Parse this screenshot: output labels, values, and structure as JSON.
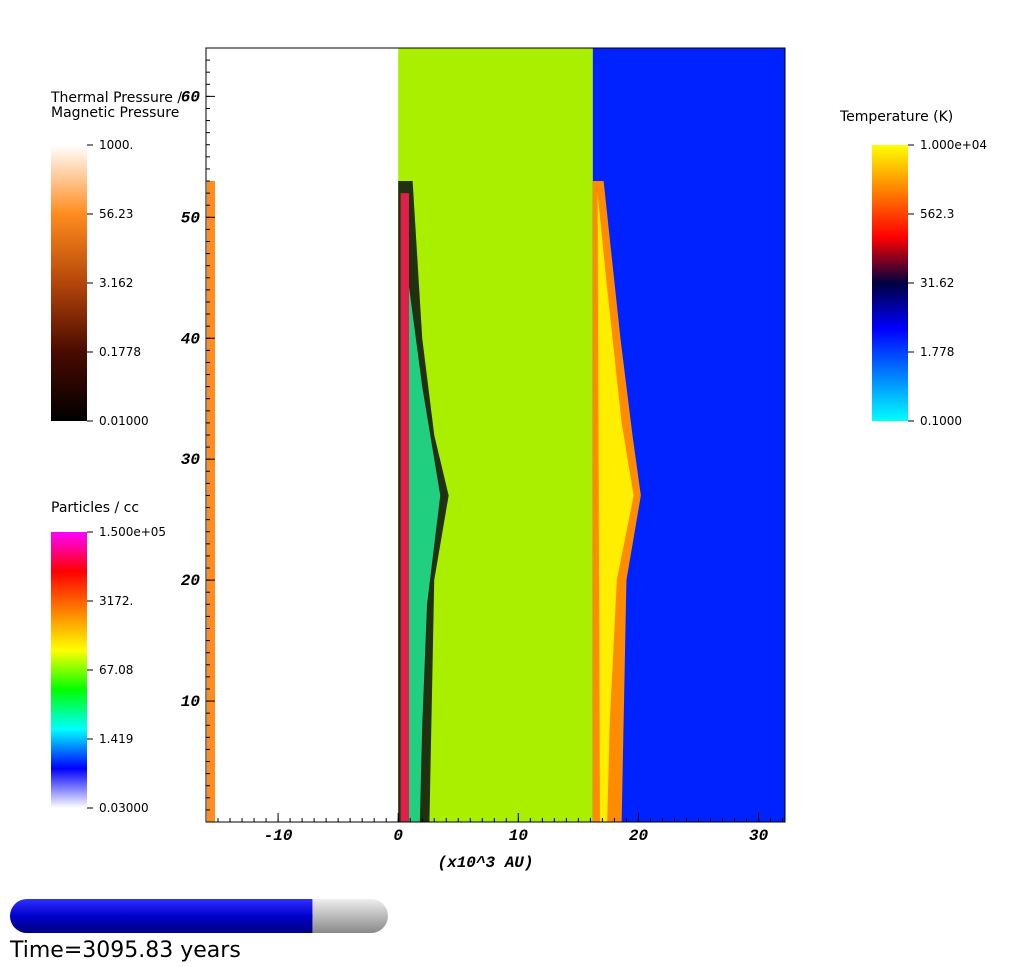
{
  "plot": {
    "xlabel": "(x10^3 AU)",
    "xlim": [
      -16,
      32.2
    ],
    "ylim": [
      0,
      64
    ],
    "xticks": [
      -10,
      0,
      10,
      20,
      30
    ],
    "yticks": [
      10,
      20,
      30,
      40,
      50,
      60
    ]
  },
  "legends": [
    {
      "title": [
        "Thermal Pressure /",
        "Magnetic Pressure"
      ],
      "labels": [
        "1000.",
        "56.23",
        "3.162",
        "0.1778",
        "0.01000"
      ],
      "colors": [
        "#ffffff",
        "#ff8c1e",
        "#b4460a",
        "#4a0a00",
        "#000000"
      ]
    },
    {
      "title": [
        "Particles / cc"
      ],
      "labels": [
        "1.500e+05",
        "3172.",
        "67.08",
        "1.419",
        "0.03000"
      ],
      "colors": [
        "#ff00ff",
        "#ff0000",
        "#ff8000",
        "#ffff00",
        "#00ff00",
        "#00ffff",
        "#0000ff",
        "#ffffff"
      ]
    },
    {
      "title": [
        "Temperature (K)"
      ],
      "labels": [
        "1.000e+04",
        "562.3",
        "31.62",
        "1.778",
        "0.1000"
      ],
      "colors": [
        "#ffff00",
        "#ff8000",
        "#ff0000",
        "#000040",
        "#0000ff",
        "#0080ff",
        "#00ffff"
      ]
    }
  ],
  "time": {
    "label": "Time=3095.83 years",
    "progress": 0.8
  }
}
